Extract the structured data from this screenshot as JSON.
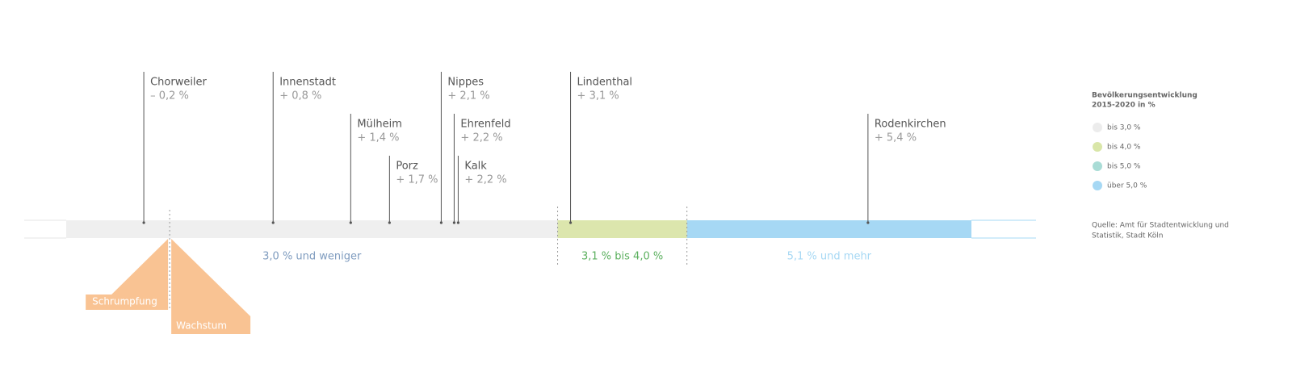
{
  "chart_data": {
    "type": "strip",
    "categories": [
      "Chorweiler",
      "Innenstadt",
      "Mülheim",
      "Porz",
      "Nippes",
      "Ehrenfeld",
      "Kalk",
      "Lindenthal",
      "Rodenkirchen"
    ],
    "values": [
      -0.2,
      0.8,
      1.4,
      1.7,
      2.1,
      2.2,
      2.2,
      3.1,
      5.4
    ],
    "value_labels": [
      "– 0,2 %",
      "+ 0,8 %",
      "+ 1,4 %",
      "+ 1,7 %",
      "+ 2,1 %",
      "+ 2,2 %",
      "+ 2,2 %",
      "+ 3,1 %",
      "+ 5,4 %"
    ],
    "xlim": [
      -0.8,
      6.2
    ],
    "marker_color": "#555555",
    "bands": [
      {
        "label": "3,0 % und weniger",
        "from": -0.8,
        "to": 3.0,
        "color": "#efefef",
        "label_color": "#7f9cbf"
      },
      {
        "label": "3,1 % bis 4,0 %",
        "from": 3.0,
        "to": 4.0,
        "color": "#dce6ad",
        "label_color": "#5cb05f"
      },
      {
        "label": "5,1 % und mehr",
        "from": 4.0,
        "to": 6.2,
        "color": "#a6d8f4",
        "label_color": "#a6d8f4"
      }
    ],
    "divider": 0,
    "divider_labels": [
      "Schrumpfung",
      "Wachstum"
    ],
    "divider_color": "#f9c393",
    "legend": {
      "title": [
        "Bevölkerungsentwicklung",
        "2015-2020 in %"
      ],
      "items": [
        {
          "label": "bis 3,0 %",
          "color": "#ececec"
        },
        {
          "label": "bis 4,0 %",
          "color": "#d9e6a8"
        },
        {
          "label": "bis 5,0 %",
          "color": "#a9dcd6"
        },
        {
          "label": "über 5,0 %",
          "color": "#a6d8f4"
        }
      ]
    },
    "source": [
      "Quelle: Amt für Stadtentwicklung und",
      "Statistik, Stadt Köln"
    ]
  }
}
